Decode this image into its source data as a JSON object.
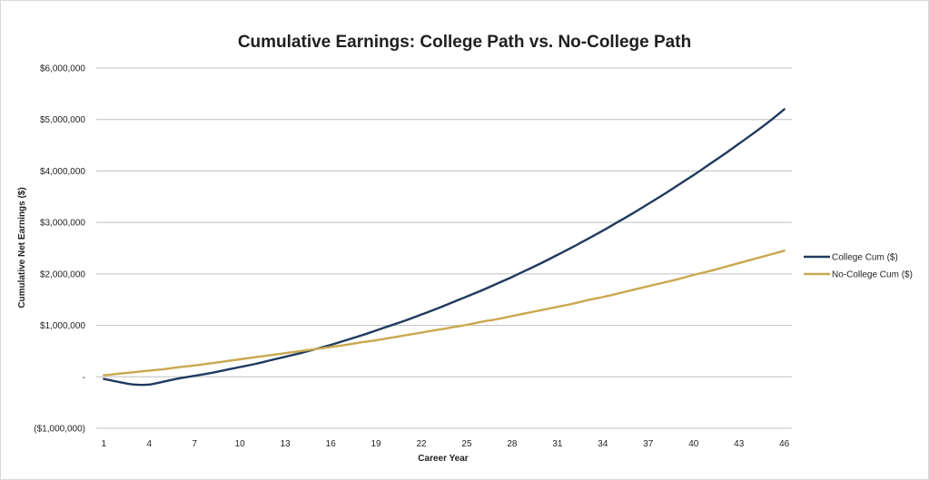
{
  "chart_data": {
    "type": "line",
    "title": "Cumulative Earnings: College Path vs. No-College Path",
    "xlabel": "Career Year",
    "ylabel": "Cumulative  Net Earnings ($)",
    "x": [
      1,
      2,
      3,
      4,
      5,
      6,
      7,
      8,
      9,
      10,
      11,
      12,
      13,
      14,
      15,
      16,
      17,
      18,
      19,
      20,
      21,
      22,
      23,
      24,
      25,
      26,
      27,
      28,
      29,
      30,
      31,
      32,
      33,
      34,
      35,
      36,
      37,
      38,
      39,
      40,
      41,
      42,
      43,
      44,
      45,
      46
    ],
    "x_tick_labels": [
      "1",
      "4",
      "7",
      "10",
      "13",
      "16",
      "19",
      "22",
      "25",
      "28",
      "31",
      "34",
      "37",
      "40",
      "43",
      "46"
    ],
    "ylim": [
      -1000000,
      6000000
    ],
    "y_ticks": [
      -1000000,
      0,
      1000000,
      2000000,
      3000000,
      4000000,
      5000000,
      6000000
    ],
    "y_tick_labels": [
      "($1,000,000)",
      "-",
      "$1,000,000",
      "$2,000,000",
      "$3,000,000",
      "$4,000,000",
      "$5,000,000",
      "$6,000,000"
    ],
    "grid": true,
    "legend_position": "right",
    "series": [
      {
        "name": "College Cum ($)",
        "color": "#1f3a5f",
        "values": [
          -40000,
          -100000,
          -150000,
          -150000,
          -90000,
          -30000,
          20000,
          70000,
          130000,
          190000,
          250000,
          320000,
          390000,
          460000,
          540000,
          620000,
          710000,
          800000,
          900000,
          1000000,
          1100000,
          1210000,
          1320000,
          1440000,
          1560000,
          1680000,
          1810000,
          1940000,
          2080000,
          2220000,
          2370000,
          2520000,
          2680000,
          2840000,
          3010000,
          3180000,
          3360000,
          3540000,
          3730000,
          3920000,
          4120000,
          4320000,
          4530000,
          4740000,
          4960000,
          5200000
        ]
      },
      {
        "name": "No-College Cum ($)",
        "color": "#c9a84f",
        "values": [
          30000,
          60000,
          90000,
          120000,
          150000,
          190000,
          220000,
          260000,
          300000,
          340000,
          380000,
          420000,
          460000,
          500000,
          540000,
          580000,
          620000,
          670000,
          710000,
          760000,
          810000,
          860000,
          910000,
          960000,
          1010000,
          1070000,
          1120000,
          1180000,
          1240000,
          1300000,
          1360000,
          1420000,
          1490000,
          1550000,
          1620000,
          1690000,
          1760000,
          1830000,
          1900000,
          1980000,
          2050000,
          2130000,
          2210000,
          2290000,
          2370000,
          2450000
        ]
      }
    ]
  }
}
